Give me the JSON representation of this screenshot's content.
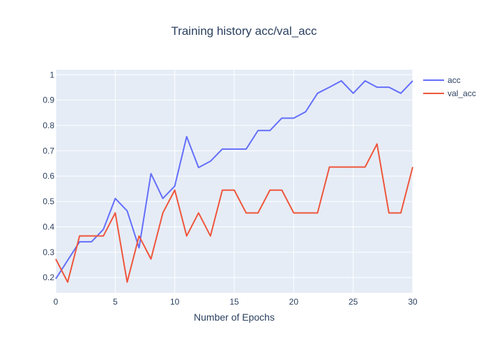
{
  "chart_data": {
    "type": "line",
    "title": "Training history acc/val_acc",
    "xlabel": "Number of Epochs",
    "ylabel": "",
    "xlim": [
      0,
      30
    ],
    "ylim": [
      0.14,
      1.02
    ],
    "xticks": [
      0,
      5,
      10,
      15,
      20,
      25,
      30
    ],
    "yticks": [
      0.2,
      0.3,
      0.4,
      0.5,
      0.6,
      0.7,
      0.8,
      0.9,
      1
    ],
    "ytick_labels": [
      "0.2",
      "0.3",
      "0.4",
      "0.5",
      "0.6",
      "0.7",
      "0.8",
      "0.9",
      "1"
    ],
    "grid": true,
    "legend_position": "top-right",
    "background": "#e5ecf6",
    "x": [
      0,
      1,
      2,
      3,
      4,
      5,
      6,
      7,
      8,
      9,
      10,
      11,
      12,
      13,
      14,
      15,
      16,
      17,
      18,
      19,
      20,
      21,
      22,
      23,
      24,
      25,
      26,
      27,
      28,
      29,
      30
    ],
    "series": [
      {
        "name": "acc",
        "color": "#636efa",
        "values": [
          0.195,
          0.268,
          0.341,
          0.341,
          0.39,
          0.512,
          0.463,
          0.317,
          0.61,
          0.512,
          0.561,
          0.756,
          0.634,
          0.659,
          0.707,
          0.707,
          0.707,
          0.78,
          0.78,
          0.829,
          0.829,
          0.854,
          0.927,
          0.951,
          0.976,
          0.927,
          0.976,
          0.951,
          0.951,
          0.927,
          0.976
        ]
      },
      {
        "name": "val_acc",
        "color": "#ef553b",
        "values": [
          0.273,
          0.182,
          0.364,
          0.364,
          0.364,
          0.455,
          0.182,
          0.364,
          0.273,
          0.455,
          0.545,
          0.364,
          0.455,
          0.364,
          0.545,
          0.545,
          0.455,
          0.455,
          0.545,
          0.545,
          0.455,
          0.455,
          0.455,
          0.636,
          0.636,
          0.636,
          0.636,
          0.727,
          0.455,
          0.455,
          0.636
        ]
      }
    ]
  }
}
